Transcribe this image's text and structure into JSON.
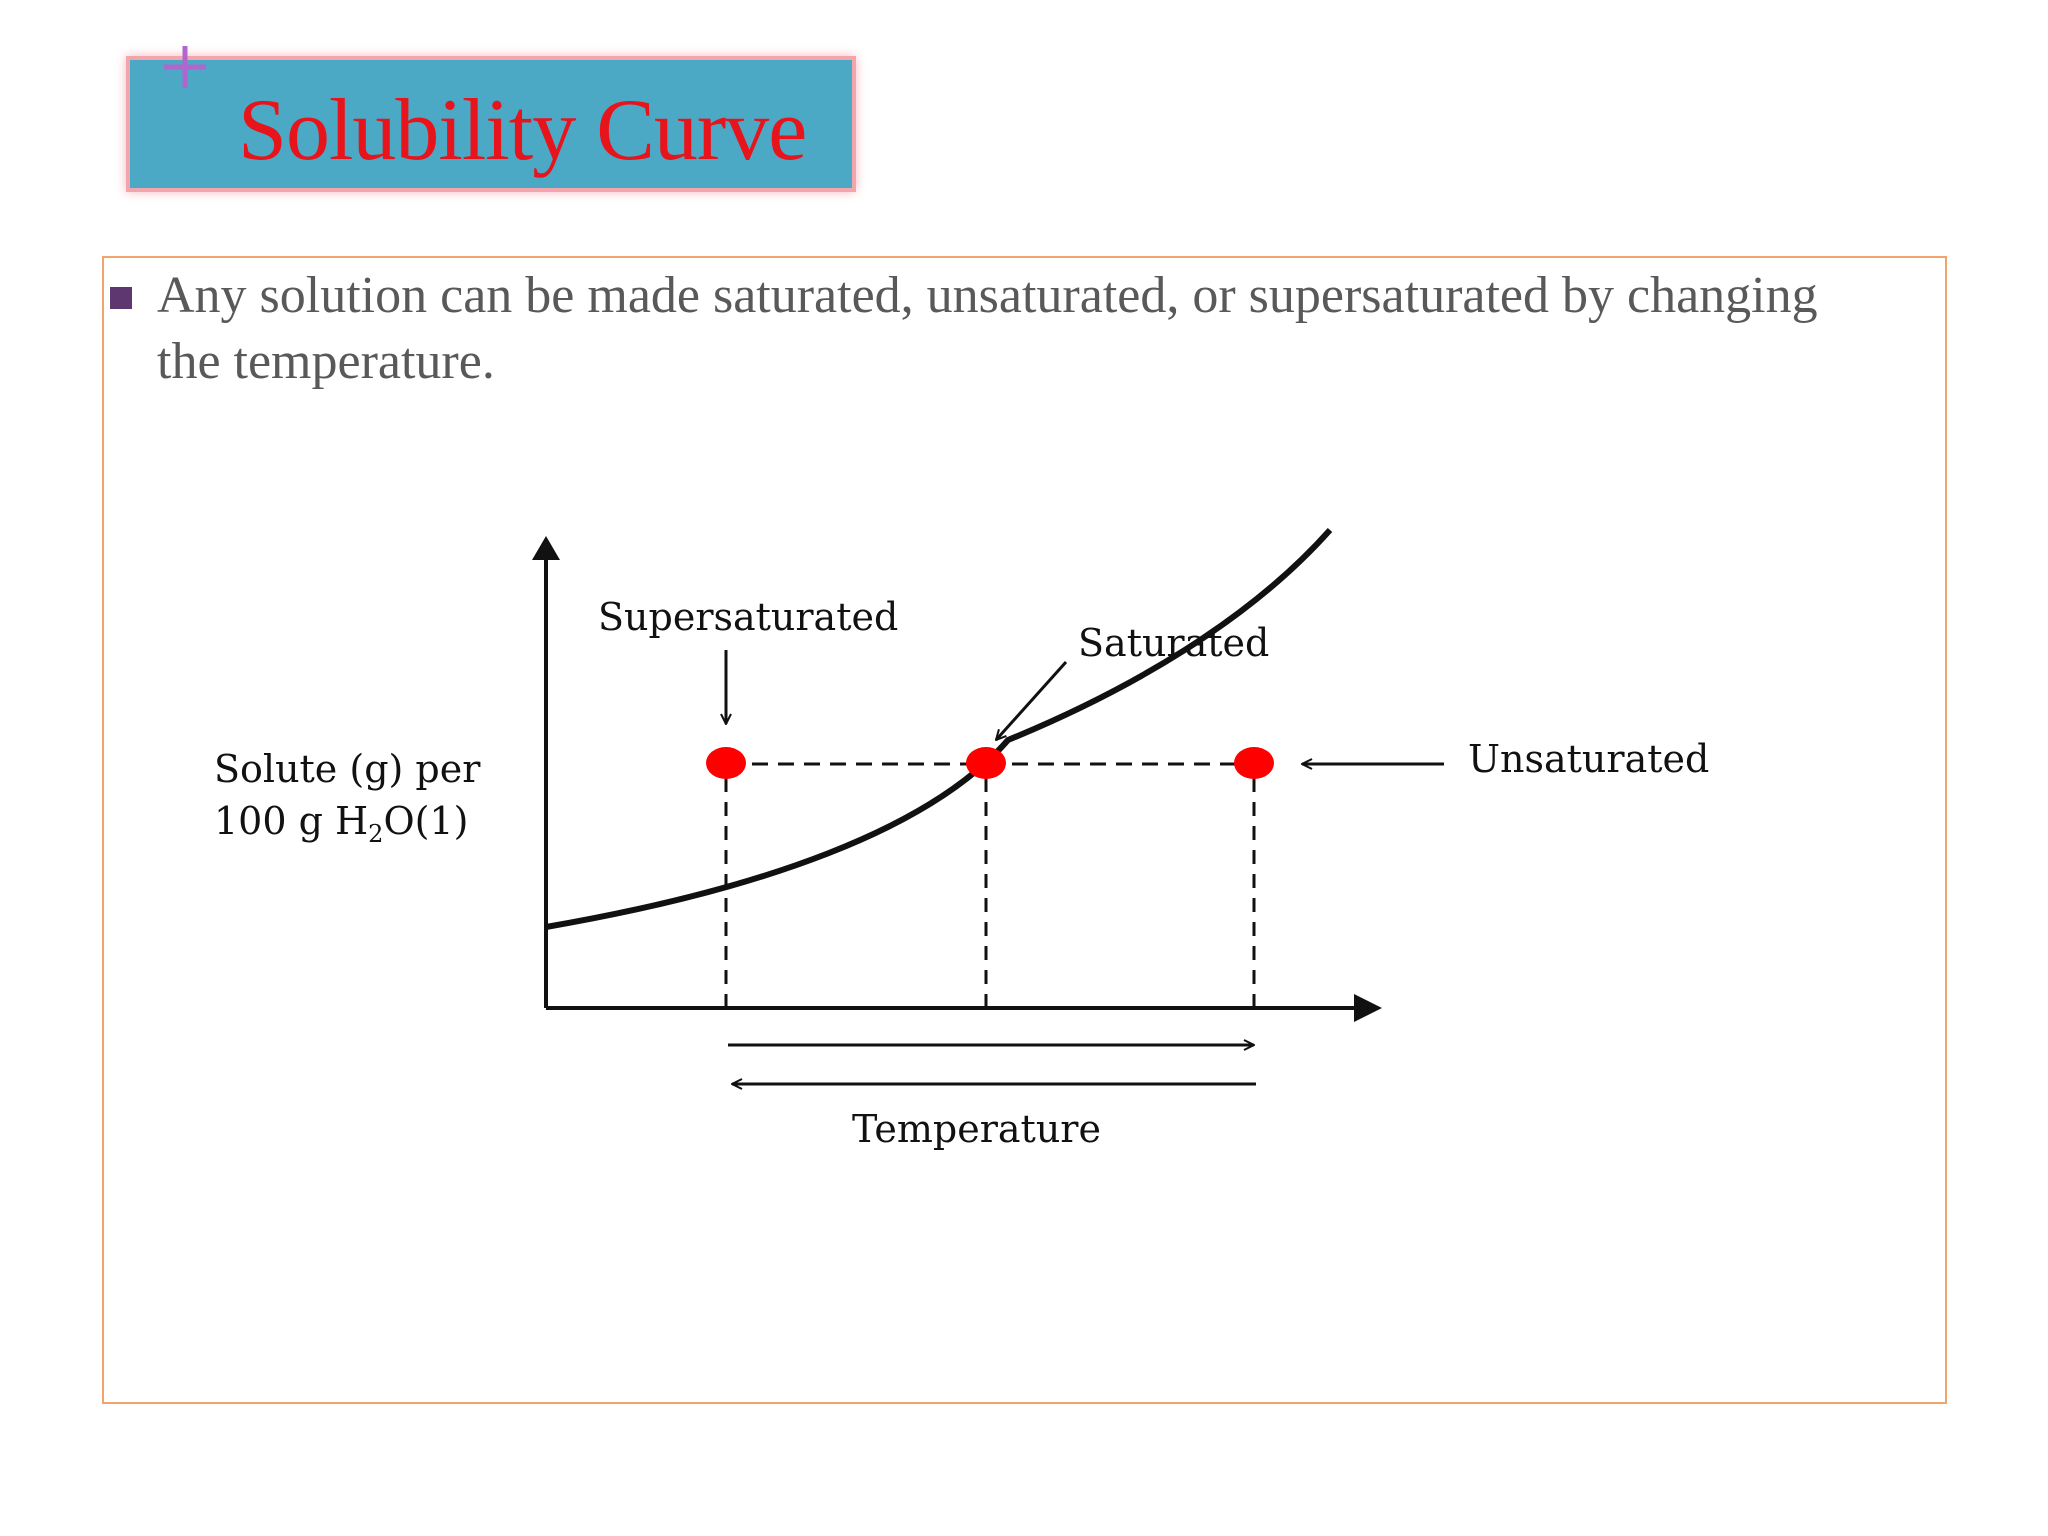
{
  "slide": {
    "title": "Solubility Curve",
    "bullet": "Any solution can be made saturated, unsaturated, or supersaturated  by changing the temperature."
  },
  "diagram": {
    "y_axis_label_line1": "Solute (g) per",
    "y_axis_label_line2_prefix": "100  g H",
    "y_axis_label_subscript": "2",
    "y_axis_label_line2_suffix": "O(1)",
    "x_axis_label": "Temperature",
    "labels": {
      "supersaturated": "Supersaturated",
      "saturated": "Saturated",
      "unsaturated": "Unsaturated"
    }
  },
  "colors": {
    "title_background": "#4ca9c6",
    "title_border": "#f3a5ae",
    "title_text": "#e8141c",
    "plus_icon": "#b066cc",
    "content_border": "#f0a36b",
    "bullet_marker": "#5f3770",
    "body_text": "#595959",
    "point_color": "#ff0000"
  },
  "icons": {
    "title_decoration": "plus-icon",
    "bullet": "square-bullet-icon"
  }
}
